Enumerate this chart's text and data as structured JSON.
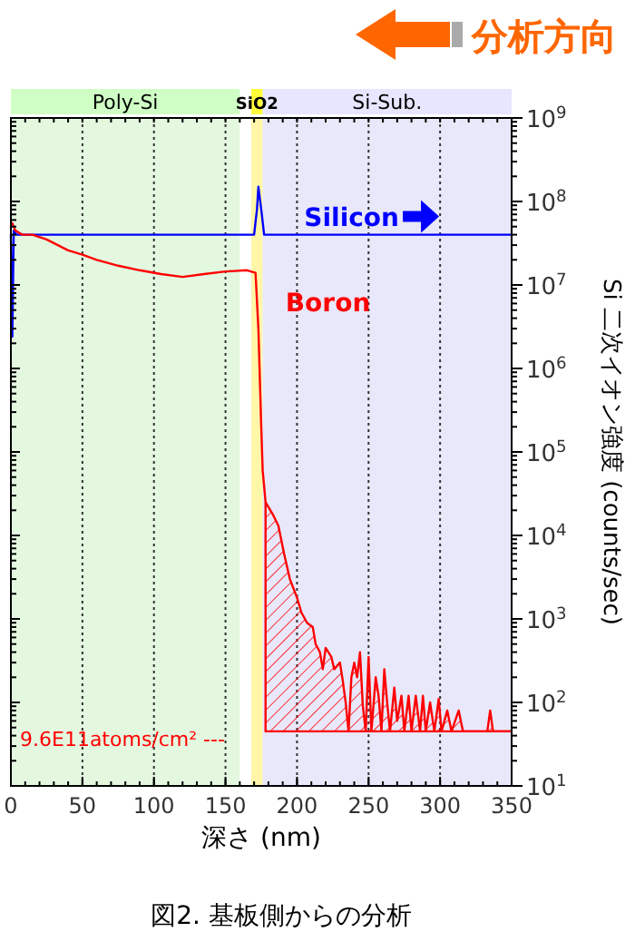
{
  "chart_data": {
    "type": "line",
    "title": "図2. 基板側からの分析",
    "xlabel": "深さ (nm)",
    "ylabel": "Si 二次イオン強度 (counts/sec)",
    "annotations": [
      "分析方向",
      "9.6E11atoms/cm² ---"
    ],
    "xlim": [
      0,
      350
    ],
    "xticks": [
      0,
      50,
      100,
      150,
      200,
      250,
      300,
      350
    ],
    "ylim": [
      10,
      1000000000
    ],
    "log": true,
    "yticks": [
      {
        "value": 10,
        "label": "10$^{1}$"
      },
      {
        "value": 100,
        "label": "10$^{2}$"
      },
      {
        "value": 1000,
        "label": "10$^{3}$"
      },
      {
        "value": 10000,
        "label": "10$^{4}$"
      },
      {
        "value": 100000,
        "label": "10$^{5}$"
      },
      {
        "value": 1000000,
        "label": "10$^{6}$"
      },
      {
        "value": 10000000,
        "label": "10$^{7}$"
      },
      {
        "value": 100000000,
        "label": "10$^{8}$"
      },
      {
        "value": 1000000000,
        "label": "10$^{9}$"
      }
    ],
    "grid": "x",
    "bands": [
      {
        "axis": "x",
        "from": 0,
        "to": 160,
        "label": "Poly-Si",
        "color": "#e4f8e0"
      },
      {
        "axis": "x",
        "from": 168,
        "to": 176,
        "label": "SiO2",
        "color": "#fff6a8"
      },
      {
        "axis": "x",
        "from": 176,
        "to": 350,
        "label": "Si-Sub.",
        "color": "#e8e8fa"
      }
    ],
    "series": [
      {
        "name": "Silicon",
        "color": "#0000ff",
        "x": [
          0,
          1,
          2,
          4,
          170,
          172,
          173,
          175,
          177,
          350
        ],
        "values": [
          40000000,
          2400000,
          45000000,
          40000000,
          40000000,
          80000000,
          150000000,
          80000000,
          40000000,
          40000000
        ]
      },
      {
        "name": "Boron",
        "color": "#ff0000",
        "x": [
          1,
          3,
          8,
          15,
          25,
          40,
          50,
          60,
          75,
          90,
          105,
          120,
          135,
          150,
          165,
          171,
          173,
          175,
          176,
          178,
          183,
          187,
          191,
          195,
          200,
          203,
          207,
          211,
          213,
          216,
          218,
          220,
          224,
          226,
          230,
          232,
          234,
          236,
          238,
          240,
          242,
          244,
          246,
          248,
          250,
          252,
          255,
          257,
          259,
          261,
          263,
          265,
          268,
          270,
          273,
          275,
          278,
          280,
          283,
          286,
          288,
          290,
          293,
          296,
          299,
          301,
          305,
          308,
          313,
          316,
          325,
          333,
          335,
          337,
          350
        ],
        "values": [
          55000000,
          45000000,
          40000000,
          40000000,
          35000000,
          26000000,
          23000000,
          20000000,
          17000000,
          15000000,
          13500000,
          12500000,
          13500000,
          14500000,
          15000000,
          14000000,
          3000000,
          200000,
          60000,
          25000,
          18000,
          13000,
          6000,
          3000,
          1800,
          1200,
          900,
          800,
          500,
          400,
          250,
          450,
          350,
          250,
          300,
          180,
          100,
          45,
          200,
          300,
          200,
          400,
          90,
          45,
          350,
          45,
          200,
          120,
          45,
          250,
          100,
          45,
          150,
          60,
          120,
          45,
          120,
          45,
          120,
          45,
          120,
          45,
          100,
          45,
          110,
          45,
          80,
          45,
          80,
          45,
          45,
          45,
          80,
          45,
          45
        ]
      },
      {
        "type": "area",
        "color": "#ff0000",
        "x": [
          178,
          183,
          187,
          191,
          195,
          200,
          203,
          207,
          211,
          213,
          216,
          218,
          220,
          224,
          226,
          230,
          232,
          234,
          236,
          238,
          240,
          242,
          244,
          246,
          248,
          250,
          252,
          255,
          257,
          259,
          261,
          263,
          265,
          268,
          270,
          273,
          275,
          278,
          280,
          283,
          286,
          288,
          290,
          293,
          296,
          299,
          301,
          305,
          308,
          313,
          316,
          325,
          333,
          335,
          337,
          350
        ],
        "values": [
          25000,
          18000,
          13000,
          6000,
          3000,
          1800,
          1200,
          900,
          800,
          500,
          400,
          250,
          450,
          350,
          250,
          300,
          180,
          100,
          45,
          200,
          300,
          200,
          400,
          90,
          45,
          350,
          45,
          200,
          120,
          45,
          250,
          100,
          45,
          150,
          60,
          120,
          45,
          120,
          45,
          120,
          45,
          120,
          45,
          100,
          45,
          110,
          45,
          80,
          45,
          80,
          45,
          45,
          45,
          80,
          45,
          45
        ]
      }
    ]
  }
}
